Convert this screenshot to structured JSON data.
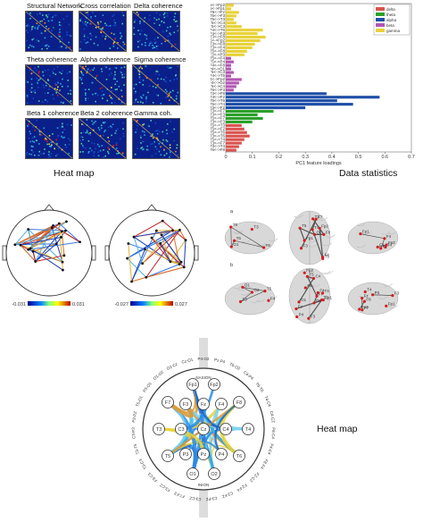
{
  "heatmap_panel": {
    "titles": [
      "Structural Network",
      "Cross correlation",
      "Delta coherence",
      "Theta coherence",
      "Alpha coherence",
      "Sigma coherence",
      "Beta 1 coherence",
      "Beta 2 coherence",
      "Gamma coh."
    ],
    "caption": "Heat map"
  },
  "data_stats": {
    "caption": "Data statistics",
    "xlabel": "PC1 feature loadings",
    "legend": [
      {
        "name": "delta",
        "color": "#d9534f"
      },
      {
        "name": "theta",
        "color": "#2ca02c"
      },
      {
        "name": "alpha",
        "color": "#1f4fa8"
      },
      {
        "name": "beta",
        "color": "#b357b3"
      },
      {
        "name": "gamma",
        "color": "#e8d23a"
      }
    ]
  },
  "chart_data": {
    "type": "bar",
    "orientation": "horizontal",
    "xlabel": "PC1 feature loadings",
    "xlim": [
      0,
      0.7
    ],
    "xticks": [
      "0",
      "0.1",
      "0.2",
      "0.3",
      "0.4",
      "0.5",
      "0.6",
      "0.7"
    ],
    "categories": [
      "T5<->Fp2",
      "T5<->Fp1",
      "T5<->Fz",
      "T5<->F3",
      "T5<->T3",
      "T5<->C4",
      "T5<->C3",
      "P4<->T6",
      "P4<->F3",
      "T3<->F8",
      "T5<->Fp2",
      "T3<->F8",
      "T3<->F4",
      "T5<->F8",
      "T3<->P3",
      "T5<->F4",
      "T5<->P4",
      "P4<->F8",
      "P4<->O1",
      "T5<->C3",
      "P4<->T5",
      "P4<->Fp2",
      "P4<->O2",
      "T5<->C4",
      "T5<->F3",
      "T3<->F8",
      "T3<->F2",
      "T5<->T6",
      "T5<->T4",
      "T3<->F2",
      "T3<->F7",
      "T3<->F3",
      "T5<->F7",
      "T3<->F3",
      "T5<->T3",
      "T5<->F2",
      "T5<->T6",
      "T3<->T6",
      "T5<->T4",
      "T3<->F7",
      "T3<->T4",
      "T5<->F8"
    ],
    "bands": [
      "gamma",
      "gamma",
      "gamma",
      "gamma",
      "gamma",
      "gamma",
      "gamma",
      "gamma",
      "gamma",
      "gamma",
      "gamma",
      "gamma",
      "gamma",
      "gamma",
      "gamma",
      "beta",
      "beta",
      "beta",
      "beta",
      "beta",
      "beta",
      "beta",
      "beta",
      "beta",
      "beta",
      "alpha",
      "alpha",
      "alpha",
      "alpha",
      "alpha",
      "theta",
      "theta",
      "theta",
      "theta",
      "delta",
      "delta",
      "delta",
      "delta",
      "delta",
      "delta",
      "delta",
      "delta"
    ],
    "values": [
      0.03,
      0.02,
      0.05,
      0.04,
      0.03,
      0.04,
      0.06,
      0.14,
      0.12,
      0.15,
      0.13,
      0.11,
      0.1,
      0.08,
      0.07,
      0.02,
      0.03,
      0.02,
      0.02,
      0.03,
      0.02,
      0.06,
      0.05,
      0.04,
      0.03,
      0.38,
      0.58,
      0.42,
      0.48,
      0.3,
      0.18,
      0.12,
      0.14,
      0.1,
      0.06,
      0.07,
      0.08,
      0.09,
      0.07,
      0.06,
      0.05,
      0.04
    ]
  },
  "head_maps": [
    {
      "min_label": "-0.031",
      "max_label": "0.031"
    },
    {
      "min_label": "-0.027",
      "max_label": "0.027"
    }
  ],
  "brain_panel": {
    "label_a": "a",
    "label_b": "b",
    "electrodes_a": [
      "O1",
      "T6",
      "T5",
      "F8",
      "T3",
      "T4",
      "F7",
      "Fp2",
      "Fp1",
      "F3",
      "F4"
    ],
    "electrodes_b": [
      "O2",
      "O1",
      "T3",
      "T5",
      "F4",
      "C4",
      "P4",
      "Fz",
      "F3",
      "Fp1",
      "Fp2",
      "F7",
      "F8",
      "T4"
    ]
  },
  "circle_map": {
    "caption": "Heat map",
    "nasion": "NASION",
    "inion": "INION",
    "nodes": [
      "Fp1",
      "Fp2",
      "F7",
      "F3",
      "Fz",
      "F4",
      "F8",
      "T3",
      "C3",
      "Cz",
      "C4",
      "T4",
      "T5",
      "P3",
      "Pz",
      "P4",
      "T6",
      "O1",
      "O2"
    ],
    "rim_labels": [
      "C3-CZ",
      "F7-F3",
      "F3-CZ",
      "F3-C3",
      "T3-C3",
      "T3-T5",
      "C3-P3",
      "P3-PZ",
      "T5-O1",
      "P3-O1",
      "O1-O2",
      "O2-Cz",
      "Cz-O1",
      "P4-O2",
      "Pz-P4",
      "T6-O2",
      "C4-P4",
      "T6-T6",
      "T4-C4",
      "C4-CZ",
      "F8-C4",
      "F4-C4",
      "F8-F4",
      "FZ-CZ",
      "FZ-F4",
      "C2-FZ",
      "C3-FZ"
    ]
  }
}
